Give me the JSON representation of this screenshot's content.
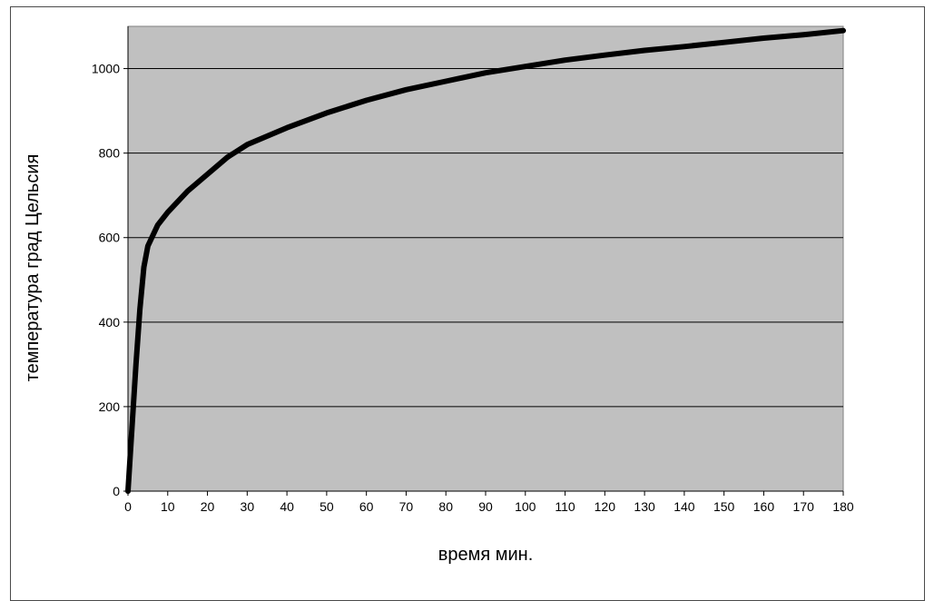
{
  "chart_data": {
    "type": "line",
    "title": "",
    "xlabel": "время мин.",
    "ylabel": "температура град Цельсия",
    "xlim": [
      0,
      180
    ],
    "ylim": [
      0,
      1100
    ],
    "x_ticks": [
      0,
      10,
      20,
      30,
      40,
      50,
      60,
      70,
      80,
      90,
      100,
      110,
      120,
      130,
      140,
      150,
      160,
      170,
      180
    ],
    "y_ticks": [
      0,
      200,
      400,
      600,
      800,
      1000
    ],
    "grid": "horizontal",
    "legend": "none",
    "colors": {
      "plot_background": "#c0c0c0",
      "line": "#000000",
      "gridline": "#000000"
    },
    "series": [
      {
        "x": [
          0,
          1,
          2,
          3,
          4,
          5,
          7.5,
          10,
          15,
          20,
          25,
          30,
          40,
          50,
          60,
          70,
          80,
          90,
          100,
          110,
          120,
          130,
          140,
          150,
          160,
          170,
          180
        ],
        "y": [
          0,
          150,
          300,
          430,
          530,
          580,
          630,
          660,
          710,
          750,
          790,
          820,
          860,
          895,
          925,
          950,
          970,
          990,
          1005,
          1020,
          1032,
          1043,
          1052,
          1062,
          1072,
          1080,
          1090
        ]
      }
    ]
  }
}
